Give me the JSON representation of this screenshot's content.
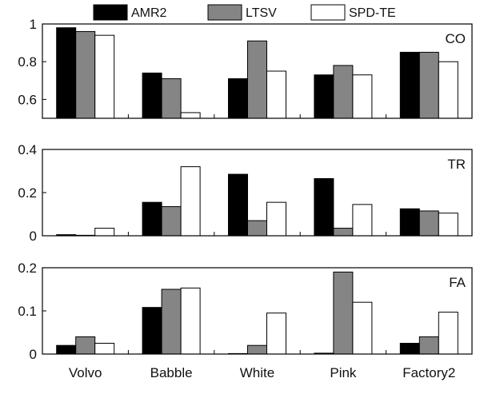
{
  "legend": [
    {
      "name": "AMR2",
      "color": "#000000"
    },
    {
      "name": "LTSV",
      "color": "#858585"
    },
    {
      "name": "SPD-TE",
      "color": "#ffffff"
    }
  ],
  "chart_data": [
    {
      "type": "bar",
      "panel_label": "CO",
      "categories": [
        "Volvo",
        "Babble",
        "White",
        "Pink",
        "Factory2"
      ],
      "series": [
        {
          "name": "AMR2",
          "values": [
            0.98,
            0.74,
            0.71,
            0.73,
            0.85
          ]
        },
        {
          "name": "LTSV",
          "values": [
            0.96,
            0.71,
            0.91,
            0.78,
            0.85
          ]
        },
        {
          "name": "SPD-TE",
          "values": [
            0.94,
            0.53,
            0.75,
            0.73,
            0.8
          ]
        }
      ],
      "ylim": [
        0.5,
        1.0
      ],
      "yticks": [
        0.6,
        0.8,
        1.0
      ],
      "ytick_labels": [
        "0.6",
        "0.8",
        "1"
      ]
    },
    {
      "type": "bar",
      "panel_label": "TR",
      "categories": [
        "Volvo",
        "Babble",
        "White",
        "Pink",
        "Factory2"
      ],
      "series": [
        {
          "name": "AMR2",
          "values": [
            0.005,
            0.155,
            0.285,
            0.265,
            0.125
          ]
        },
        {
          "name": "LTSV",
          "values": [
            0.0,
            0.135,
            0.07,
            0.035,
            0.115
          ]
        },
        {
          "name": "SPD-TE",
          "values": [
            0.035,
            0.32,
            0.155,
            0.145,
            0.105
          ]
        }
      ],
      "ylim": [
        0,
        0.4
      ],
      "yticks": [
        0,
        0.2,
        0.4
      ],
      "ytick_labels": [
        "0",
        "0.2",
        "0.4"
      ]
    },
    {
      "type": "bar",
      "panel_label": "FA",
      "categories": [
        "Volvo",
        "Babble",
        "White",
        "Pink",
        "Factory2"
      ],
      "series": [
        {
          "name": "AMR2",
          "values": [
            0.02,
            0.108,
            0.001,
            0.002,
            0.025
          ]
        },
        {
          "name": "LTSV",
          "values": [
            0.04,
            0.15,
            0.02,
            0.19,
            0.04
          ]
        },
        {
          "name": "SPD-TE",
          "values": [
            0.025,
            0.153,
            0.095,
            0.12,
            0.097
          ]
        }
      ],
      "ylim": [
        0,
        0.2
      ],
      "yticks": [
        0,
        0.1,
        0.2
      ],
      "ytick_labels": [
        "0",
        "0.1",
        "0.2"
      ]
    }
  ],
  "xtick_labels": [
    "Volvo",
    "Babble",
    "White",
    "Pink",
    "Factory2"
  ]
}
